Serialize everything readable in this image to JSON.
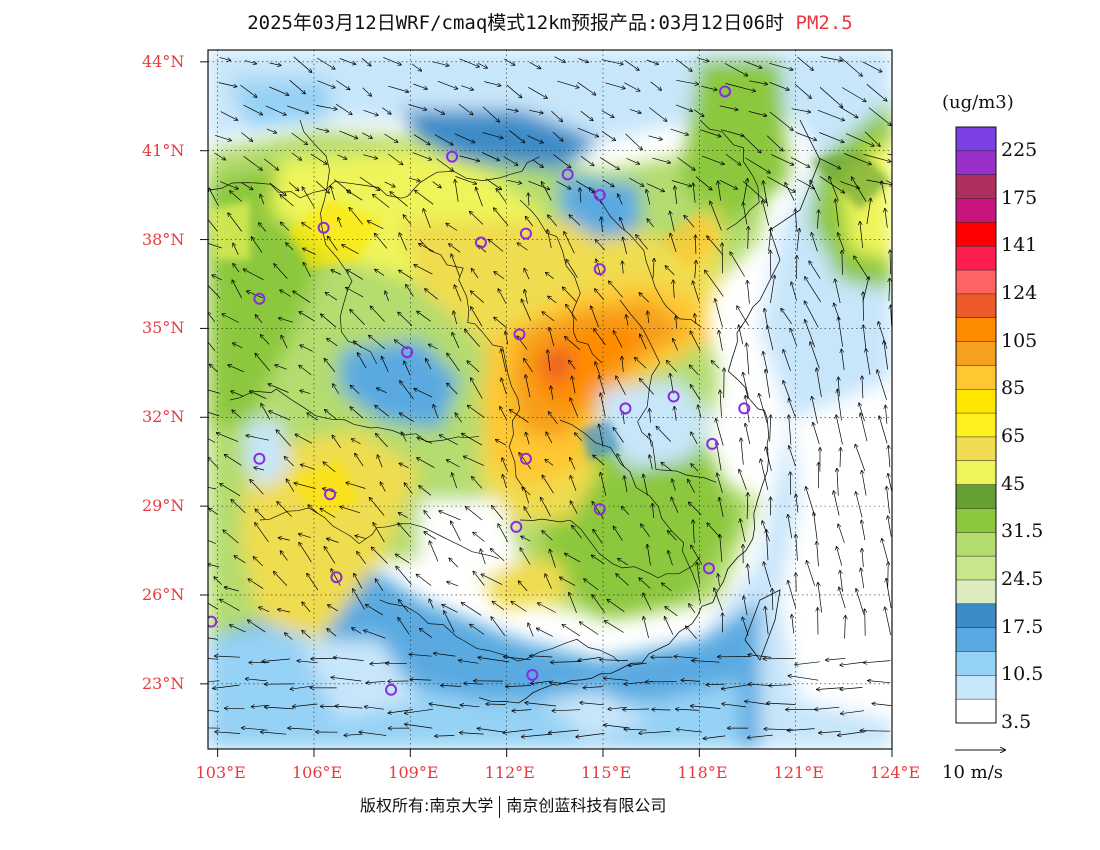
{
  "title": {
    "main": "2025年03月12日WRF/cmaq模式12km预报产品:03月12日06时",
    "pollutant": "PM2.5"
  },
  "map": {
    "lon_range": [
      102.7,
      124.0
    ],
    "lat_range": [
      20.8,
      44.4
    ],
    "lon_ticks": [
      103,
      106,
      109,
      112,
      115,
      118,
      121,
      124
    ],
    "lat_ticks": [
      23,
      26,
      29,
      32,
      35,
      38,
      41,
      44
    ],
    "lon_labels": [
      "103°E",
      "106°E",
      "109°E",
      "112°E",
      "115°E",
      "118°E",
      "121°E",
      "124°E"
    ],
    "lat_labels": [
      "23°N",
      "26°N",
      "29°N",
      "32°N",
      "35°N",
      "38°N",
      "41°N",
      "44°N"
    ],
    "stations": [
      {
        "lon": 118.8,
        "lat": 43.0
      },
      {
        "lon": 110.3,
        "lat": 40.8
      },
      {
        "lon": 113.9,
        "lat": 40.2
      },
      {
        "lon": 114.9,
        "lat": 39.5
      },
      {
        "lon": 106.3,
        "lat": 38.4
      },
      {
        "lon": 111.2,
        "lat": 37.9
      },
      {
        "lon": 112.6,
        "lat": 38.2
      },
      {
        "lon": 114.9,
        "lat": 37.0
      },
      {
        "lon": 104.3,
        "lat": 36.0
      },
      {
        "lon": 112.4,
        "lat": 34.8
      },
      {
        "lon": 108.9,
        "lat": 34.2
      },
      {
        "lon": 117.2,
        "lat": 32.7
      },
      {
        "lon": 115.7,
        "lat": 32.3
      },
      {
        "lon": 119.4,
        "lat": 32.3
      },
      {
        "lon": 118.4,
        "lat": 31.1
      },
      {
        "lon": 112.6,
        "lat": 30.6
      },
      {
        "lon": 104.3,
        "lat": 30.6
      },
      {
        "lon": 106.5,
        "lat": 29.4
      },
      {
        "lon": 114.9,
        "lat": 28.9
      },
      {
        "lon": 112.3,
        "lat": 28.3
      },
      {
        "lon": 106.7,
        "lat": 26.6
      },
      {
        "lon": 118.3,
        "lat": 26.9
      },
      {
        "lon": 102.8,
        "lat": 25.1
      },
      {
        "lon": 112.8,
        "lat": 23.3
      },
      {
        "lon": 108.4,
        "lat": 22.8
      }
    ]
  },
  "colorbar": {
    "unit": "(ug/m3)",
    "colors": [
      "#7b3fe4",
      "#9b2fc9",
      "#ae2f5f",
      "#c8147e",
      "#ff0000",
      "#ff1e50",
      "#ff6464",
      "#eb5a28",
      "#ff8c00",
      "#f5a01e",
      "#ffc832",
      "#ffe600",
      "#fff01e",
      "#f0dc50",
      "#eef55a",
      "#64a032",
      "#8cc83c",
      "#b4dc6e",
      "#c8e68c",
      "#dcecbe",
      "#3c8cc8",
      "#5aaae1",
      "#96d2f5",
      "#c8e6fa",
      "#ffffff"
    ],
    "labels": [
      "225",
      "175",
      "141",
      "124",
      "105",
      "85",
      "65",
      "45",
      "31.5",
      "24.5",
      "17.5",
      "10.5",
      "3.5"
    ]
  },
  "wind": {
    "reference_label": "10 m/s"
  },
  "footer": {
    "copyright_left": "版权所有:南京大学",
    "copyright_right": "南京创蓝科技有限公司"
  }
}
